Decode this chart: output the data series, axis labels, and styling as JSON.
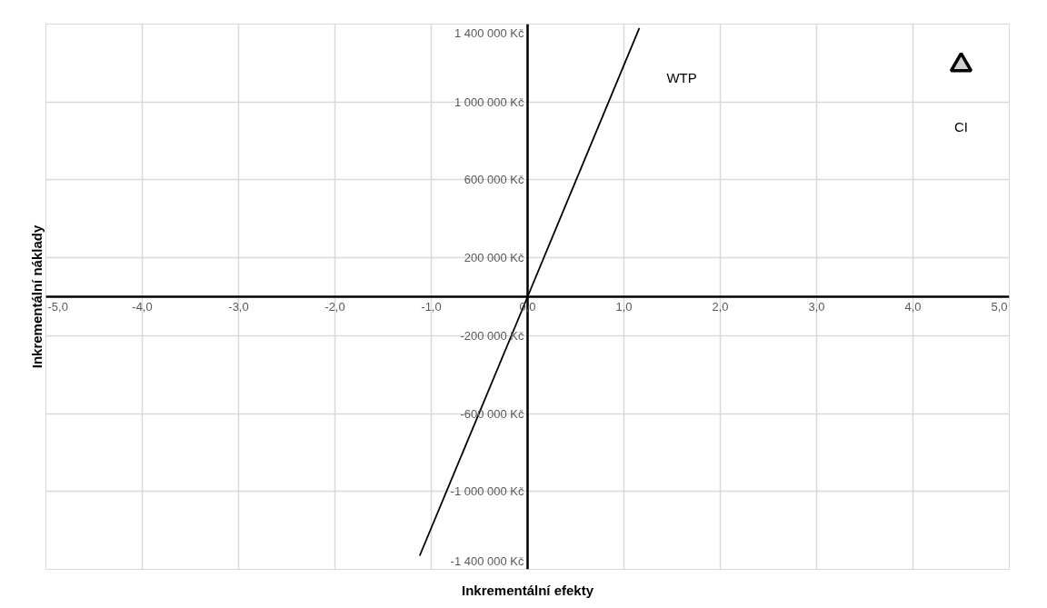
{
  "chart_data": {
    "type": "line",
    "xlabel": "Inkrementální efekty",
    "ylabel": "Inkrementální náklady",
    "xlim": [
      -5,
      5
    ],
    "ylim": [
      -1400000,
      1400000
    ],
    "xticks": [
      {
        "value": -5,
        "label": "-5,0"
      },
      {
        "value": -4,
        "label": "-4,0"
      },
      {
        "value": -3,
        "label": "-3,0"
      },
      {
        "value": -2,
        "label": "-2,0"
      },
      {
        "value": -1,
        "label": "-1,0"
      },
      {
        "value": 0,
        "label": "0,0"
      },
      {
        "value": 1,
        "label": "1,0"
      },
      {
        "value": 2,
        "label": "2,0"
      },
      {
        "value": 3,
        "label": "3,0"
      },
      {
        "value": 4,
        "label": "4,0"
      },
      {
        "value": 5,
        "label": "5,0"
      }
    ],
    "yticks": [
      {
        "value": -1400000,
        "label": "-1 400 000 Kč"
      },
      {
        "value": -1000000,
        "label": "-1 000 000 Kč"
      },
      {
        "value": -600000,
        "label": "-600 000 Kč"
      },
      {
        "value": -200000,
        "label": "-200 000 Kč"
      },
      {
        "value": 200000,
        "label": "200 000 Kč"
      },
      {
        "value": 600000,
        "label": "600 000 Kč"
      },
      {
        "value": 1000000,
        "label": "1 000 000 Kč"
      },
      {
        "value": 1400000,
        "label": "1 400 000 Kč"
      }
    ],
    "grid": true,
    "series": [
      {
        "color": "#000000",
        "x": [
          -1.12,
          0,
          1.16
        ],
        "values": [
          -1330000,
          0,
          1380000
        ],
        "marker": "none",
        "line_style": "solid"
      },
      {
        "type": "scatter",
        "color": "#d0d0d0",
        "x": [
          4.5
        ],
        "values": [
          1190000
        ],
        "marker": "triangle"
      }
    ],
    "annotations": [
      "WTP",
      "CI"
    ]
  }
}
